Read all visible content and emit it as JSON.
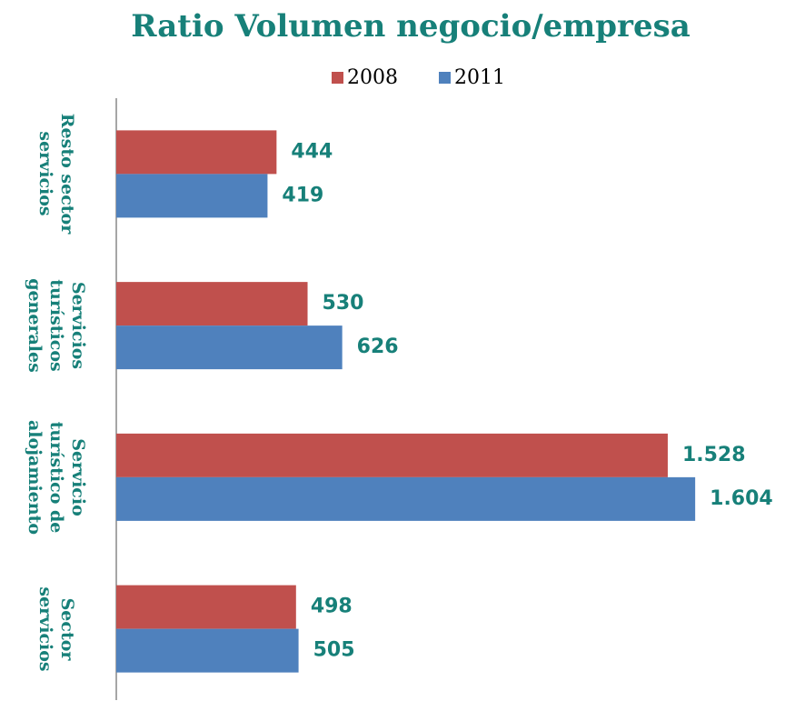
{
  "chart_data": {
    "type": "hbar",
    "title": "Ratio Volumen negocio/empresa",
    "categories": [
      "Resto sector servicios",
      "Servicios turísticos generales",
      "Servicio turístico de alojamiento",
      "Sector servicios"
    ],
    "series": [
      {
        "name": "2008",
        "color": "#c0504d",
        "values": [
          444,
          530,
          1528,
          498
        ],
        "value_labels": [
          "444",
          "530",
          "1.528",
          "498"
        ]
      },
      {
        "name": "2011",
        "color": "#4f81bd",
        "values": [
          419,
          626,
          1604,
          505
        ],
        "value_labels": [
          "419",
          "626",
          "1.604",
          "505"
        ]
      }
    ],
    "xlim": [
      0,
      1800
    ]
  }
}
